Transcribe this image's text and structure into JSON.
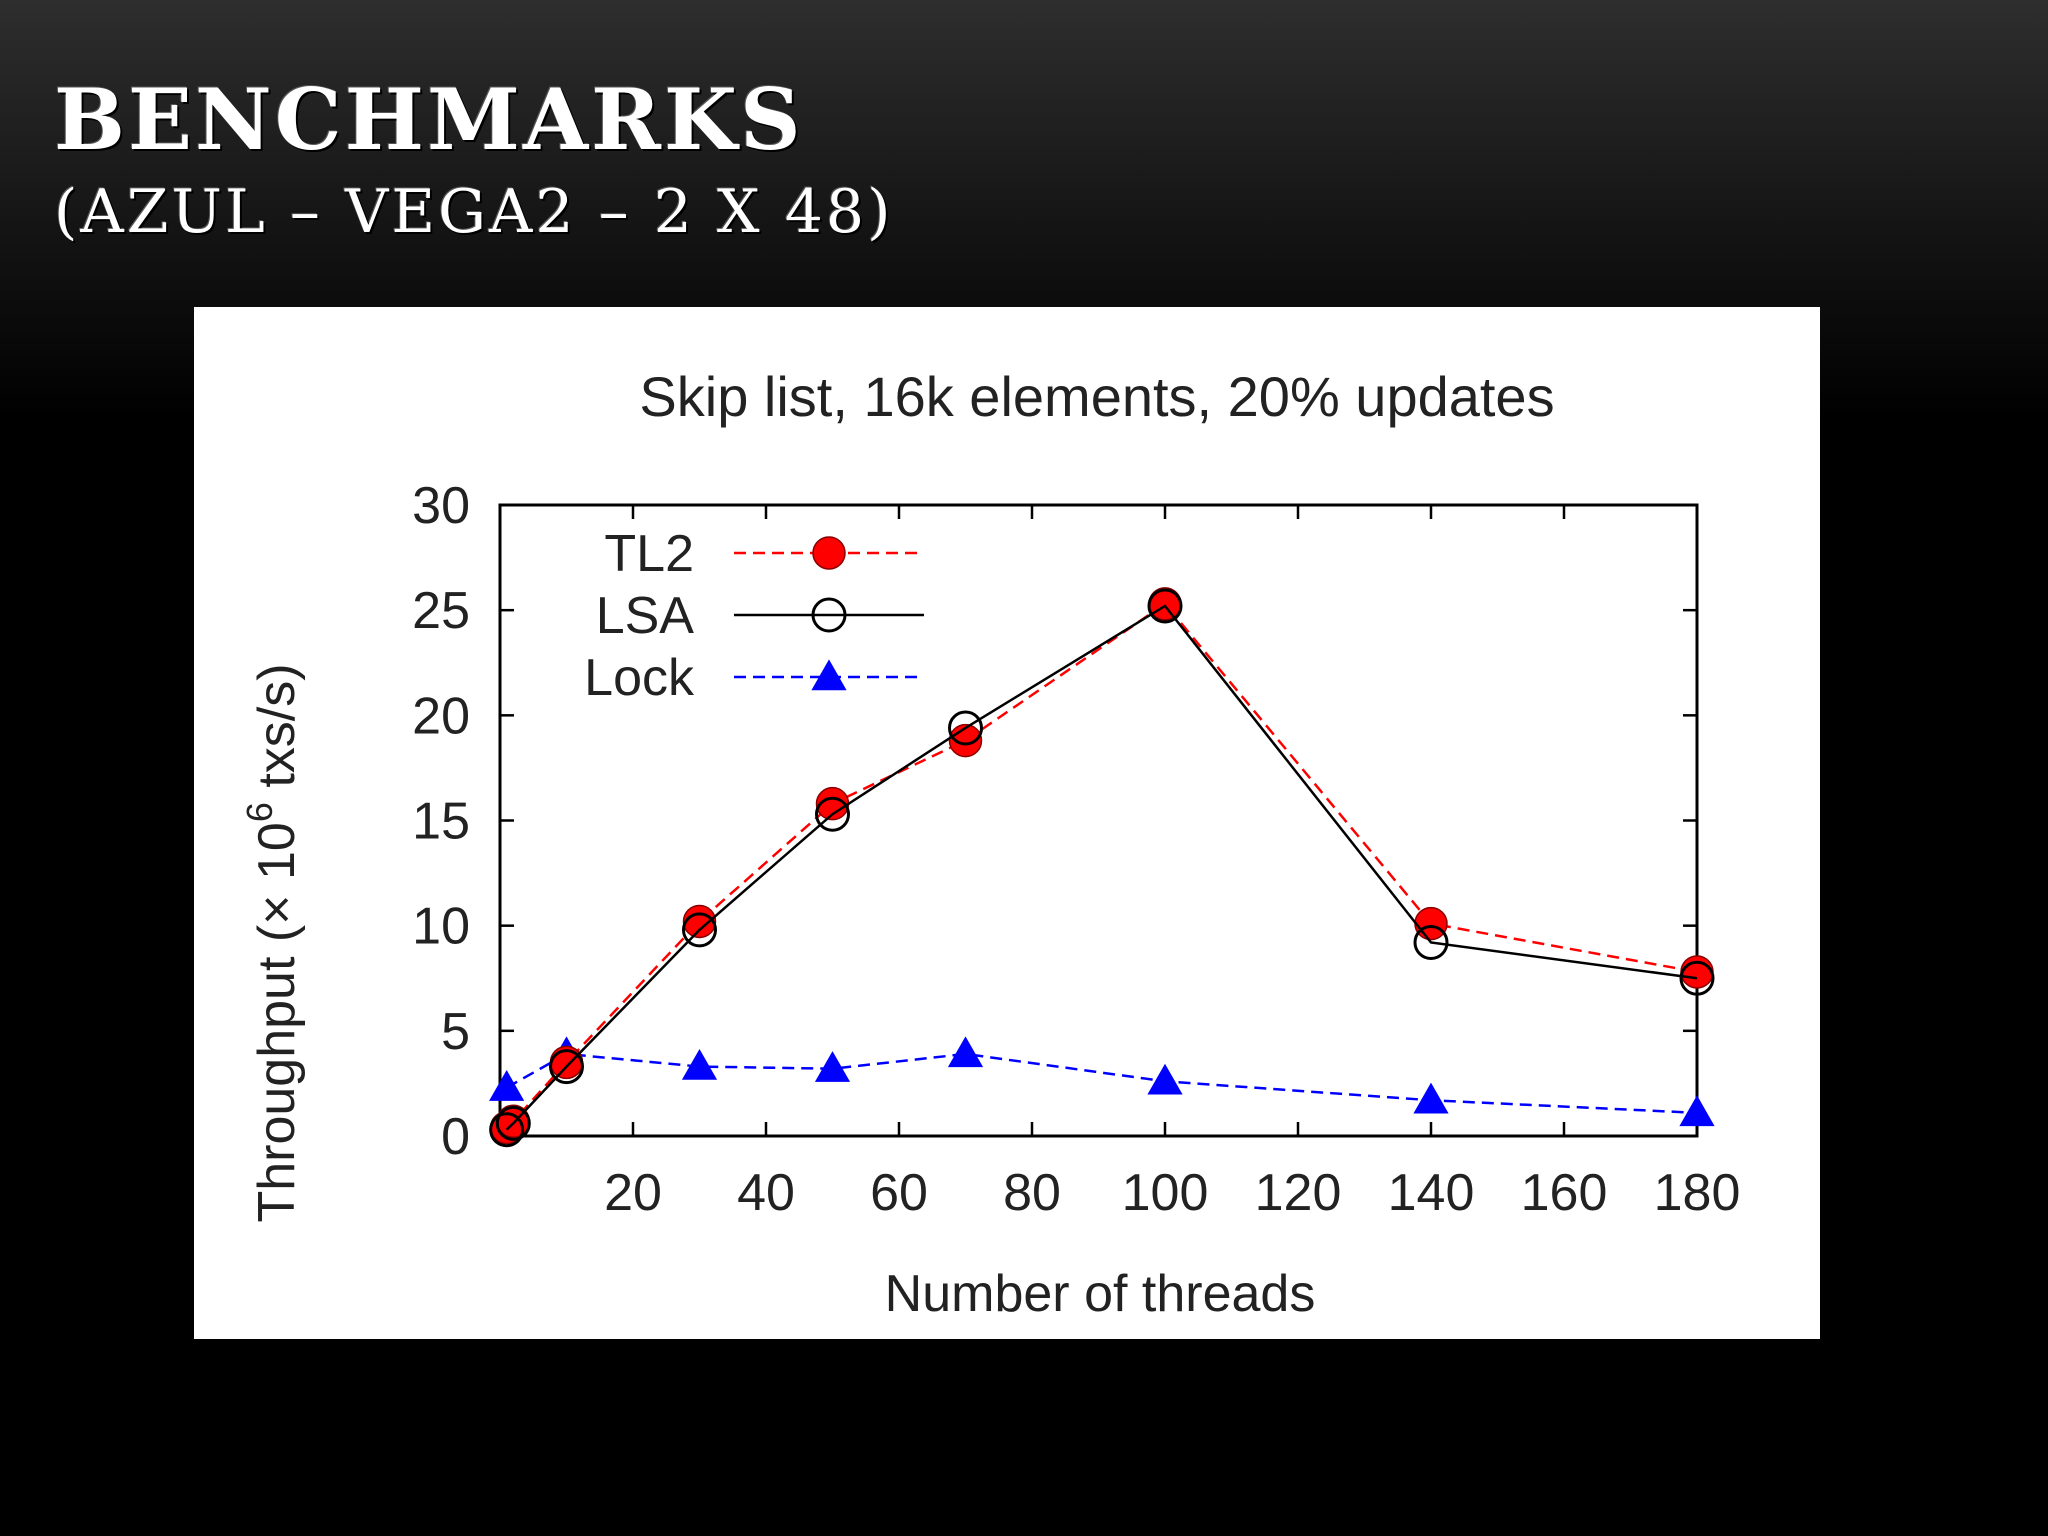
{
  "slide": {
    "title_line1": "BENCHMARKS",
    "title_line2": "(AZUL – VEGA2 – 2 X 48)"
  },
  "chart_data": {
    "type": "line",
    "title": "Skip list, 16k elements, 20% updates",
    "xlabel": "Number of threads",
    "ylabel": "Throughput (× 10",
    "ylabel_exp": "6",
    "ylabel_tail": " txs/s)",
    "xlim": [
      0,
      180
    ],
    "ylim": [
      0,
      30
    ],
    "x_ticks": [
      20,
      40,
      60,
      80,
      100,
      120,
      140,
      160,
      180
    ],
    "y_ticks": [
      0,
      5,
      10,
      15,
      20,
      25,
      30
    ],
    "x_tick_labels": [
      "20",
      "40",
      "60",
      "80",
      "100",
      "120",
      "140",
      "160",
      "180"
    ],
    "y_tick_labels": [
      "0",
      "5",
      "10",
      "15",
      "20",
      "25",
      "30"
    ],
    "legend_position": "top-left",
    "series": [
      {
        "name": "TL2",
        "color": "#ff0000",
        "line_style": "dashed",
        "marker": "filled-circle",
        "x": [
          1,
          2,
          10,
          30,
          50,
          70,
          100,
          140,
          180
        ],
        "y": [
          0.4,
          0.7,
          3.5,
          10.2,
          15.8,
          18.8,
          25.3,
          10.1,
          7.8
        ]
      },
      {
        "name": "LSA",
        "color": "#000000",
        "line_style": "solid",
        "marker": "open-circle",
        "x": [
          1,
          2,
          10,
          30,
          50,
          70,
          100,
          140,
          180
        ],
        "y": [
          0.3,
          0.6,
          3.3,
          9.8,
          15.3,
          19.4,
          25.2,
          9.2,
          7.5
        ]
      },
      {
        "name": "Lock",
        "color": "#0000ff",
        "line_style": "dashed",
        "marker": "filled-triangle",
        "x": [
          1,
          10,
          30,
          50,
          70,
          100,
          140,
          180
        ],
        "y": [
          2.3,
          3.9,
          3.3,
          3.2,
          3.9,
          2.6,
          1.7,
          1.1
        ]
      }
    ]
  }
}
